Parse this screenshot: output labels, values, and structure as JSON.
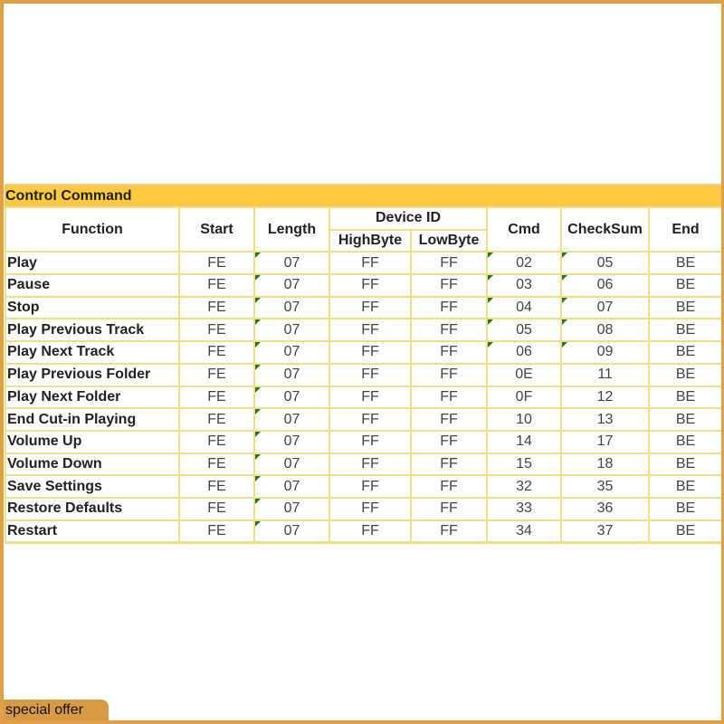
{
  "table": {
    "title": "Control Command",
    "headers": {
      "function": "Function",
      "start": "Start",
      "length": "Length",
      "device_id": "Device ID",
      "high_byte": "HighByte",
      "low_byte": "LowByte",
      "cmd": "Cmd",
      "checksum": "CheckSum",
      "end": "End"
    },
    "rows": [
      {
        "function": "Play",
        "start": "FE",
        "length": "07",
        "high": "FF",
        "low": "FF",
        "cmd": "02",
        "checksum": "05",
        "end": "BE"
      },
      {
        "function": "Pause",
        "start": "FE",
        "length": "07",
        "high": "FF",
        "low": "FF",
        "cmd": "03",
        "checksum": "06",
        "end": "BE"
      },
      {
        "function": "Stop",
        "start": "FE",
        "length": "07",
        "high": "FF",
        "low": "FF",
        "cmd": "04",
        "checksum": "07",
        "end": "BE"
      },
      {
        "function": "Play Previous Track",
        "start": "FE",
        "length": "07",
        "high": "FF",
        "low": "FF",
        "cmd": "05",
        "checksum": "08",
        "end": "BE"
      },
      {
        "function": "Play Next Track",
        "start": "FE",
        "length": "07",
        "high": "FF",
        "low": "FF",
        "cmd": "06",
        "checksum": "09",
        "end": "BE"
      },
      {
        "function": "Play Previous Folder",
        "start": "FE",
        "length": "07",
        "high": "FF",
        "low": "FF",
        "cmd": "0E",
        "checksum": "11",
        "end": "BE"
      },
      {
        "function": "Play Next Folder",
        "start": "FE",
        "length": "07",
        "high": "FF",
        "low": "FF",
        "cmd": "0F",
        "checksum": "12",
        "end": "BE"
      },
      {
        "function": "End Cut-in Playing",
        "start": "FE",
        "length": "07",
        "high": "FF",
        "low": "FF",
        "cmd": "10",
        "checksum": "13",
        "end": "BE"
      },
      {
        "function": "Volume Up",
        "start": "FE",
        "length": "07",
        "high": "FF",
        "low": "FF",
        "cmd": "14",
        "checksum": "17",
        "end": "BE"
      },
      {
        "function": "Volume Down",
        "start": "FE",
        "length": "07",
        "high": "FF",
        "low": "FF",
        "cmd": "15",
        "checksum": "18",
        "end": "BE"
      },
      {
        "function": "Save Settings",
        "start": "FE",
        "length": "07",
        "high": "FF",
        "low": "FF",
        "cmd": "32",
        "checksum": "35",
        "end": "BE"
      },
      {
        "function": "Restore Defaults",
        "start": "FE",
        "length": "07",
        "high": "FF",
        "low": "FF",
        "cmd": "33",
        "checksum": "36",
        "end": "BE"
      },
      {
        "function": "Restart",
        "start": "FE",
        "length": "07",
        "high": "FF",
        "low": "FF",
        "cmd": "34",
        "checksum": "37",
        "end": "BE"
      }
    ]
  },
  "badge": {
    "label": "special offer"
  },
  "colors": {
    "frame": "#e0a048",
    "title_bg": "#fcc940",
    "grid": "#f3dd86",
    "badge_bg": "#d99a45",
    "comment_marker": "#1e7a1e"
  }
}
